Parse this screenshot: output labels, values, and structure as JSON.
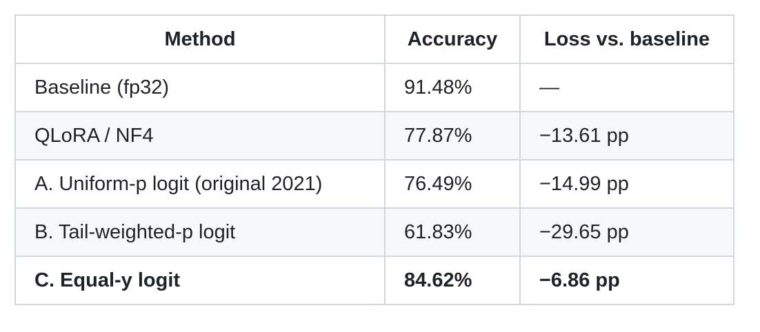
{
  "table": {
    "header": [
      "Method",
      "Accuracy",
      "Loss vs. baseline"
    ],
    "rows": [
      [
        "Baseline (fp32)",
        "91.48%",
        "—"
      ],
      [
        "QLoRA / NF4",
        "77.87%",
        "−13.61 pp"
      ],
      [
        "A. Uniform-p logit (original 2021)",
        "76.49%",
        "−14.99 pp"
      ],
      [
        "B. Tail-weighted-p logit",
        "61.83%",
        "−29.65 pp"
      ],
      [
        "C. Equal-y logit",
        "84.62%",
        "−6.86 pp"
      ]
    ]
  }
}
